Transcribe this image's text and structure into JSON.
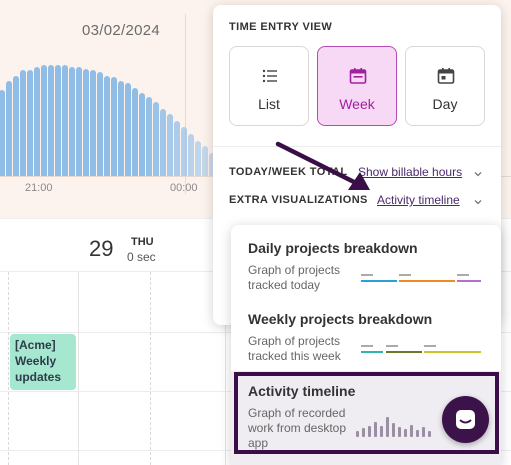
{
  "calendar": {
    "date": "03/02/2024",
    "axis_ticks": [
      "21:00",
      "00:00"
    ],
    "day": {
      "number": "29",
      "name": "THU",
      "total": "0 sec"
    },
    "event": {
      "lines": [
        "[Acme]",
        "Weekly",
        "updates"
      ]
    },
    "histogram_levels": [
      0.49,
      0.54,
      0.57,
      0.6,
      0.6,
      0.62,
      0.63,
      0.63,
      0.63,
      0.63,
      0.62,
      0.62,
      0.61,
      0.6,
      0.59,
      0.57,
      0.56,
      0.54,
      0.53,
      0.5,
      0.47,
      0.45,
      0.42,
      0.38,
      0.35,
      0.31,
      0.28,
      0.24,
      0.2,
      0.17,
      0.13,
      0.1,
      0.07,
      0.05
    ]
  },
  "popover": {
    "heading": "TIME ENTRY VIEW",
    "views": [
      {
        "label": "List",
        "icon": "list-icon",
        "active": false
      },
      {
        "label": "Week",
        "icon": "calendar-week-icon",
        "active": true
      },
      {
        "label": "Day",
        "icon": "calendar-day-icon",
        "active": false
      }
    ],
    "today_week_total_label": "TODAY/WEEK TOTAL",
    "today_week_total_value": "Show billable hours",
    "extra_visualizations_label": "EXTRA VISUALIZATIONS",
    "extra_visualizations_value": "Activity timeline"
  },
  "dropdown": {
    "options": [
      {
        "title": "Daily projects breakdown",
        "desc": "Graph of projects tracked today"
      },
      {
        "title": "Weekly projects breakdown",
        "desc": "Graph of projects tracked this week"
      },
      {
        "title": "Activity timeline",
        "desc": "Graph of recorded work from desktop app"
      }
    ]
  },
  "colors": {
    "accent": "#a0219f",
    "active_bg": "#f7d9f5",
    "highlight_border": "#3a0f47",
    "chat_bg": "#3b1249",
    "bar_blue": "#8fbde6",
    "event_green": "#a5e8cf"
  }
}
